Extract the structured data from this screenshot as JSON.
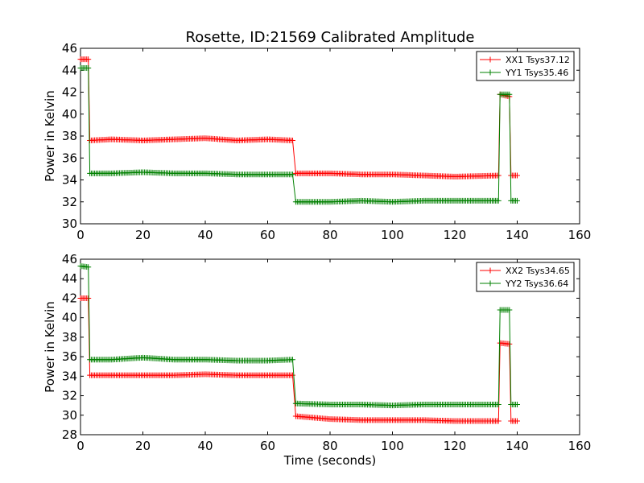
{
  "figure": {
    "title": "Rosette, ID:21569 Calibrated Amplitude",
    "xlabel": "Time (seconds)"
  },
  "chart_data": [
    {
      "type": "line",
      "ylabel": "Power in Kelvin",
      "xlim": [
        0,
        160
      ],
      "ylim": [
        30,
        46
      ],
      "xticks": [
        0,
        20,
        40,
        60,
        80,
        100,
        120,
        140,
        160
      ],
      "yticks": [
        30,
        32,
        34,
        36,
        38,
        40,
        42,
        44,
        46
      ],
      "legend_position": "top-right",
      "grid": false,
      "series": [
        {
          "name": "XX1 Tsys37.12",
          "color": "#ff0000",
          "segments": [
            {
              "x": [
                0,
                2.5
              ],
              "y": [
                45.0,
                45.0
              ]
            },
            {
              "x": [
                3,
                68
              ],
              "y": [
                37.6,
                37.6
              ],
              "points": [
                [
                  3,
                  37.6
                ],
                [
                  10,
                  37.7
                ],
                [
                  20,
                  37.6
                ],
                [
                  30,
                  37.7
                ],
                [
                  40,
                  37.8
                ],
                [
                  50,
                  37.6
                ],
                [
                  60,
                  37.7
                ],
                [
                  68,
                  37.6
                ]
              ]
            },
            {
              "x": [
                68.5,
                134
              ],
              "y": [
                34.6,
                34.3
              ],
              "points": [
                [
                  69,
                  34.6
                ],
                [
                  80,
                  34.6
                ],
                [
                  90,
                  34.5
                ],
                [
                  100,
                  34.5
                ],
                [
                  110,
                  34.4
                ],
                [
                  120,
                  34.3
                ],
                [
                  134,
                  34.4
                ]
              ]
            },
            {
              "x": [
                134.5,
                137.5
              ],
              "y": [
                41.8,
                41.6
              ]
            },
            {
              "x": [
                138,
                140
              ],
              "y": [
                34.4,
                34.4
              ]
            }
          ]
        },
        {
          "name": "YY1 Tsys35.46",
          "color": "#008000",
          "segments": [
            {
              "x": [
                0,
                2.5
              ],
              "y": [
                44.2,
                44.2
              ]
            },
            {
              "x": [
                3,
                68
              ],
              "y": [
                34.6,
                34.5
              ],
              "points": [
                [
                  3,
                  34.6
                ],
                [
                  10,
                  34.6
                ],
                [
                  20,
                  34.7
                ],
                [
                  30,
                  34.6
                ],
                [
                  40,
                  34.6
                ],
                [
                  50,
                  34.5
                ],
                [
                  60,
                  34.5
                ],
                [
                  68,
                  34.5
                ]
              ]
            },
            {
              "x": [
                68.5,
                134
              ],
              "y": [
                32.0,
                32.1
              ],
              "points": [
                [
                  69,
                  32.0
                ],
                [
                  80,
                  32.0
                ],
                [
                  90,
                  32.1
                ],
                [
                  100,
                  32.0
                ],
                [
                  110,
                  32.1
                ],
                [
                  120,
                  32.1
                ],
                [
                  134,
                  32.1
                ]
              ]
            },
            {
              "x": [
                134.5,
                137.5
              ],
              "y": [
                41.8,
                41.8
              ]
            },
            {
              "x": [
                138,
                140
              ],
              "y": [
                32.1,
                32.1
              ]
            }
          ]
        }
      ]
    },
    {
      "type": "line",
      "ylabel": "Power in Kelvin",
      "xlim": [
        0,
        160
      ],
      "ylim": [
        28,
        46
      ],
      "xticks": [
        0,
        20,
        40,
        60,
        80,
        100,
        120,
        140,
        160
      ],
      "yticks": [
        28,
        30,
        32,
        34,
        36,
        38,
        40,
        42,
        44,
        46
      ],
      "legend_position": "top-right",
      "grid": false,
      "series": [
        {
          "name": "XX2 Tsys34.65",
          "color": "#ff0000",
          "segments": [
            {
              "x": [
                0,
                2.5
              ],
              "y": [
                42.0,
                42.0
              ]
            },
            {
              "x": [
                3,
                68
              ],
              "y": [
                34.1,
                34.1
              ],
              "points": [
                [
                  3,
                  34.1
                ],
                [
                  10,
                  34.1
                ],
                [
                  20,
                  34.1
                ],
                [
                  30,
                  34.1
                ],
                [
                  40,
                  34.2
                ],
                [
                  50,
                  34.1
                ],
                [
                  60,
                  34.1
                ],
                [
                  68,
                  34.1
                ]
              ]
            },
            {
              "x": [
                68.5,
                134
              ],
              "y": [
                29.6,
                29.4
              ],
              "points": [
                [
                  69,
                  29.9
                ],
                [
                  80,
                  29.6
                ],
                [
                  90,
                  29.5
                ],
                [
                  100,
                  29.5
                ],
                [
                  110,
                  29.5
                ],
                [
                  120,
                  29.4
                ],
                [
                  134,
                  29.4
                ]
              ]
            },
            {
              "x": [
                134.5,
                137.5
              ],
              "y": [
                37.4,
                37.3
              ]
            },
            {
              "x": [
                138,
                140
              ],
              "y": [
                29.4,
                29.4
              ]
            }
          ]
        },
        {
          "name": "YY2 Tsys36.64",
          "color": "#008000",
          "segments": [
            {
              "x": [
                0,
                2.5
              ],
              "y": [
                45.3,
                45.2
              ]
            },
            {
              "x": [
                3,
                68
              ],
              "y": [
                35.7,
                35.6
              ],
              "points": [
                [
                  3,
                  35.7
                ],
                [
                  10,
                  35.7
                ],
                [
                  20,
                  35.9
                ],
                [
                  30,
                  35.7
                ],
                [
                  40,
                  35.7
                ],
                [
                  50,
                  35.6
                ],
                [
                  60,
                  35.6
                ],
                [
                  68,
                  35.7
                ]
              ]
            },
            {
              "x": [
                68.5,
                134
              ],
              "y": [
                31.1,
                31.1
              ],
              "points": [
                [
                  69,
                  31.2
                ],
                [
                  80,
                  31.1
                ],
                [
                  90,
                  31.1
                ],
                [
                  100,
                  31.0
                ],
                [
                  110,
                  31.1
                ],
                [
                  120,
                  31.1
                ],
                [
                  134,
                  31.1
                ]
              ]
            },
            {
              "x": [
                134.5,
                137.5
              ],
              "y": [
                40.8,
                40.8
              ]
            },
            {
              "x": [
                138,
                140
              ],
              "y": [
                31.1,
                31.1
              ]
            }
          ]
        }
      ]
    }
  ]
}
